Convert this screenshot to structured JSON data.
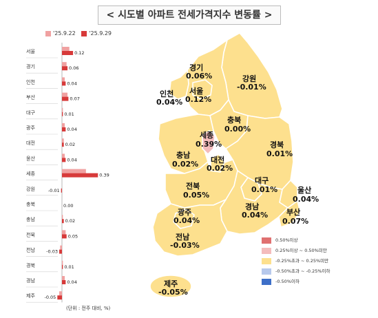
{
  "title": "< 시도별 아파트 전세가격지수 변동률 >",
  "legend": [
    {
      "label": "'25.9.22",
      "color": "#f0a1a1"
    },
    {
      "label": "'25.9.29",
      "color": "#d73a3a"
    }
  ],
  "note": "(단위 : 전주 대비, %)",
  "chart_data": {
    "type": "bar",
    "orientation": "horizontal",
    "categories": [
      "서울",
      "경기",
      "인천",
      "부산",
      "대구",
      "광주",
      "대전",
      "울산",
      "세종",
      "강원",
      "충북",
      "충남",
      "전북",
      "전남",
      "경북",
      "경남",
      "제주"
    ],
    "series": [
      {
        "name": "'25.9.22",
        "values": [
          0.08,
          0.05,
          0.03,
          0.06,
          0.01,
          0.03,
          0.02,
          0.03,
          0.26,
          0.0,
          0.0,
          0.01,
          0.04,
          -0.02,
          0.01,
          0.03,
          -0.03
        ]
      },
      {
        "name": "'25.9.29",
        "values": [
          0.12,
          0.06,
          0.04,
          0.07,
          0.01,
          0.04,
          0.02,
          0.04,
          0.39,
          -0.01,
          0.0,
          0.02,
          0.05,
          -0.03,
          0.01,
          0.04,
          -0.05
        ]
      }
    ],
    "value_labels": [
      "0.12",
      "0.06",
      "0.04",
      "0.07",
      "0.01",
      "0.04",
      "0.02",
      "0.04",
      "0.39",
      "-0.01",
      "0.00",
      "0.02",
      "0.05",
      "-0.03",
      "0.01",
      "0.04",
      "-0.05"
    ]
  },
  "map": {
    "regions": [
      {
        "id": "gyeonggi",
        "name": "경기",
        "value": "0.06%",
        "color": "#fde08e"
      },
      {
        "id": "gangwon",
        "name": "강원",
        "value": "-0.01%",
        "color": "#fde08e"
      },
      {
        "id": "incheon",
        "name": "인천",
        "value": "0.04%",
        "color": "#fde08e"
      },
      {
        "id": "seoul",
        "name": "서울",
        "value": "0.12%",
        "color": "#fde08e"
      },
      {
        "id": "chungbuk",
        "name": "충북",
        "value": "0.00%",
        "color": "#fde08e"
      },
      {
        "id": "sejong",
        "name": "세종",
        "value": "0.39%",
        "color": "#f4bcbc"
      },
      {
        "id": "chungnam",
        "name": "충남",
        "value": "0.02%",
        "color": "#fde08e"
      },
      {
        "id": "daejeon",
        "name": "대전",
        "value": "0.02%",
        "color": "#fde08e"
      },
      {
        "id": "gyeongbuk",
        "name": "경북",
        "value": "0.01%",
        "color": "#fde08e"
      },
      {
        "id": "jeonbuk",
        "name": "전북",
        "value": "0.05%",
        "color": "#fde08e"
      },
      {
        "id": "daegu",
        "name": "대구",
        "value": "0.01%",
        "color": "#fde08e"
      },
      {
        "id": "ulsan",
        "name": "울산",
        "value": "0.04%",
        "color": "#fde08e"
      },
      {
        "id": "gwangju",
        "name": "광주",
        "value": "0.04%",
        "color": "#fde08e"
      },
      {
        "id": "gyeongnam",
        "name": "경남",
        "value": "0.04%",
        "color": "#fde08e"
      },
      {
        "id": "busan",
        "name": "부산",
        "value": "0.07%",
        "color": "#fde08e"
      },
      {
        "id": "jeonnam",
        "name": "전남",
        "value": "-0.03%",
        "color": "#fde08e"
      },
      {
        "id": "jeju",
        "name": "제주",
        "value": "-0.05%",
        "color": "#fde08e"
      }
    ],
    "legend": [
      {
        "label": "0.50%이상",
        "color": "#e07070"
      },
      {
        "label": "0.25%이상 ~ 0.50%미만",
        "color": "#f4bcbc"
      },
      {
        "label": "-0.25%초과 ~ 0.25%미만",
        "color": "#fde08e"
      },
      {
        "label": "-0.50%초과 ~ -0.25%이하",
        "color": "#b7c9ec"
      },
      {
        "label": "-0.50%이하",
        "color": "#3d6fc8"
      }
    ]
  }
}
